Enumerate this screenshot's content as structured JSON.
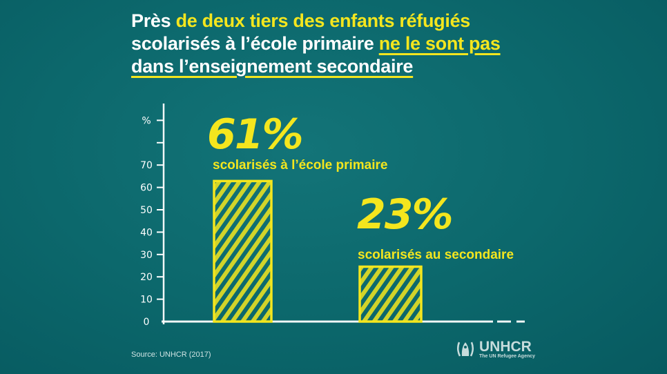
{
  "title": {
    "line1_white": "Près ",
    "line1_yellow": "de deux tiers des enfants réfugiés",
    "line2_white": "scolarisés à l’école primaire ",
    "line2_yellow_underlined": "ne le sont pas",
    "line3_underlined": "dans l’enseignement secondaire"
  },
  "chart_data": {
    "type": "bar",
    "categories": [
      "scolarisés à l’école primaire",
      "scolarisés au secondaire"
    ],
    "values": [
      61,
      23
    ],
    "value_labels": [
      "61%",
      "23%"
    ],
    "ylabel": "%",
    "yticks": [
      "0",
      "10",
      "20",
      "30",
      "40",
      "50",
      "60",
      "70"
    ],
    "ylim": [
      0,
      90
    ],
    "colors": {
      "bar": "#f4e61e",
      "axis": "#ffffff",
      "background": "#0c686c"
    }
  },
  "footer": {
    "source": "Source: UNHCR (2017)",
    "logo_name": "UNHCR",
    "logo_subtitle": "The UN Refugee Agency"
  }
}
